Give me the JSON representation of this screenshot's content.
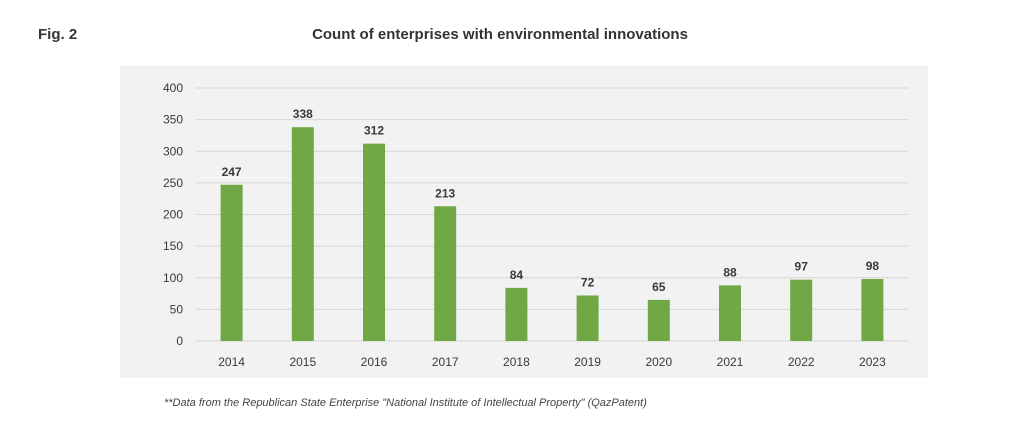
{
  "figure": {
    "label": "Fig. 2",
    "footnote": "**Data from the Republican State Enterprise \"National Institute of Intellectual Property\" (QazPatent)"
  },
  "chart_data": {
    "type": "bar",
    "title": "Count of enterprises with environmental innovations",
    "xlabel": "",
    "ylabel": "",
    "categories": [
      "2014",
      "2015",
      "2016",
      "2017",
      "2018",
      "2019",
      "2020",
      "2021",
      "2022",
      "2023"
    ],
    "values": [
      247,
      338,
      312,
      213,
      84,
      72,
      65,
      88,
      97,
      98
    ],
    "ylim": [
      0,
      400
    ],
    "yticks": [
      0,
      50,
      100,
      150,
      200,
      250,
      300,
      350,
      400
    ],
    "grid": true,
    "legend": "none",
    "colors": {
      "bar": "#70a845",
      "grid": "#d6d6d6",
      "panel": "#f2f2f2",
      "text": "#3a3a3a"
    }
  }
}
